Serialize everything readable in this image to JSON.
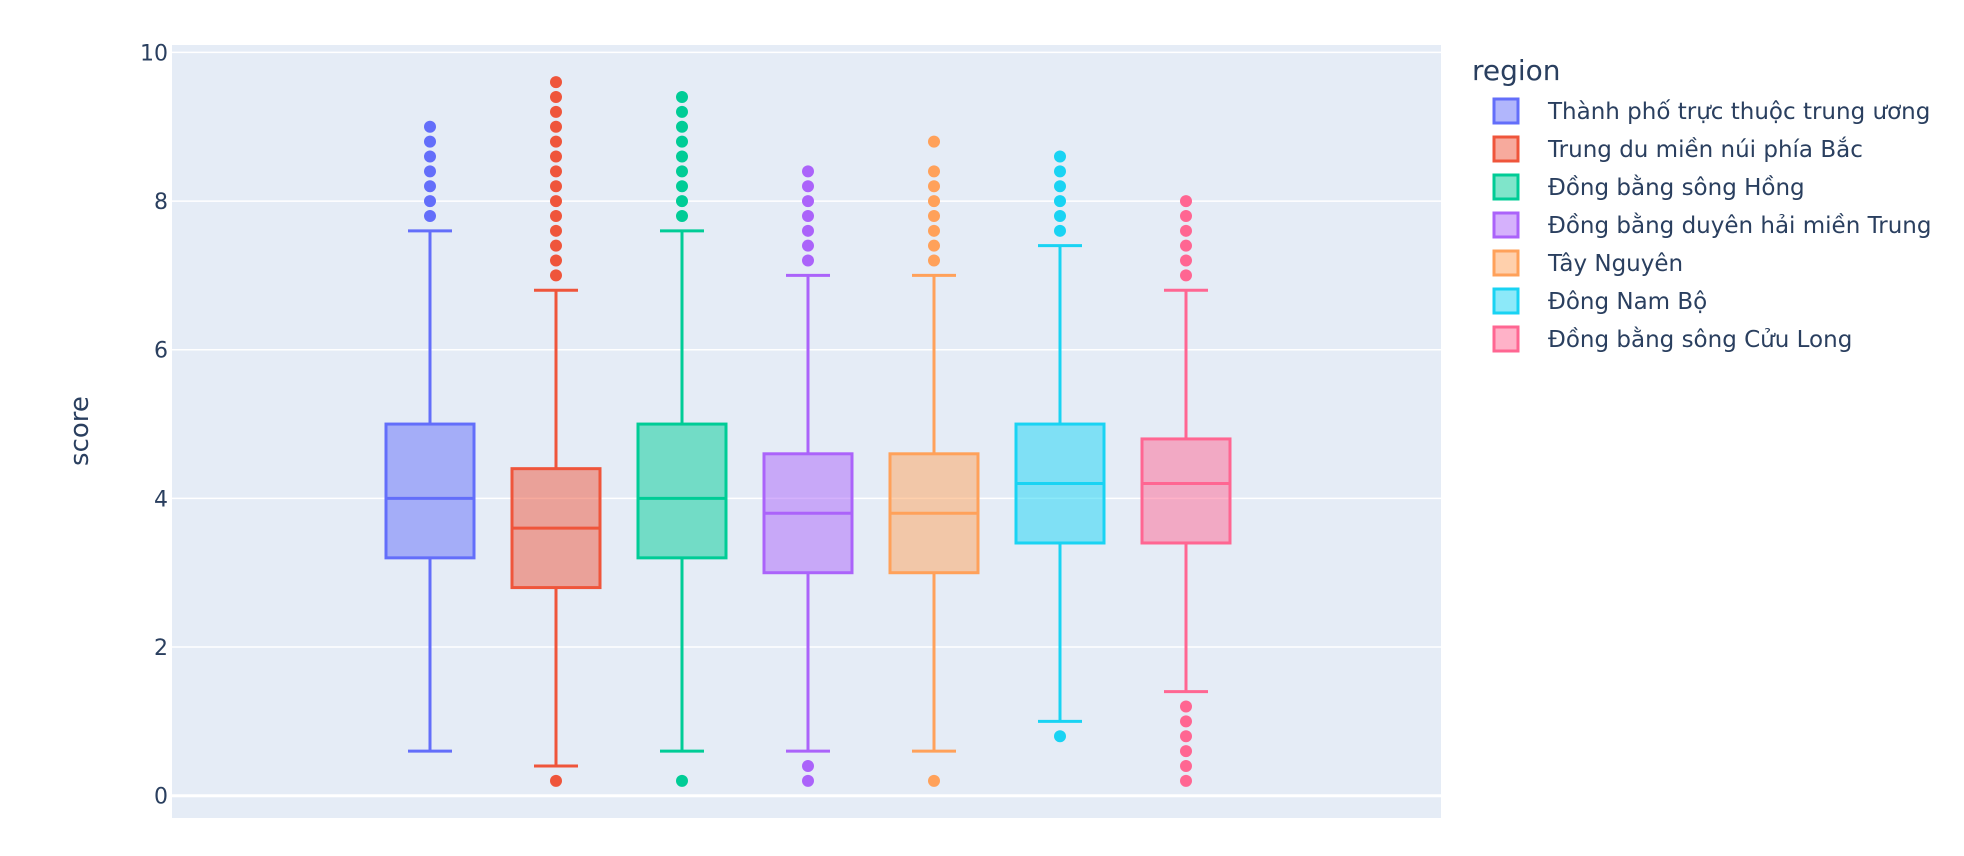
{
  "chart_data": {
    "type": "box",
    "ylabel": "score",
    "ylim": [
      -0.3,
      10.1
    ],
    "yticks": [
      0,
      2,
      4,
      6,
      8,
      10
    ],
    "grid": true,
    "legend": {
      "title": "region",
      "position": "right"
    },
    "series": [
      {
        "name": "Thành phố trực thuộc trung ương",
        "color": "#636efa",
        "q1": 3.2,
        "median": 4.0,
        "q3": 5.0,
        "lower_fence": 0.6,
        "upper_fence": 7.6,
        "outliers": [
          7.8,
          8.0,
          8.2,
          8.4,
          8.6,
          8.8,
          9.0
        ]
      },
      {
        "name": "Trung du miền núi phía Bắc",
        "color": "#EF553B",
        "q1": 2.8,
        "median": 3.6,
        "q3": 4.4,
        "lower_fence": 0.4,
        "upper_fence": 6.8,
        "outliers": [
          0.2,
          7.0,
          7.2,
          7.4,
          7.6,
          7.8,
          8.0,
          8.2,
          8.4,
          8.6,
          8.8,
          9.0,
          9.2,
          9.4,
          9.6
        ]
      },
      {
        "name": "Đồng bằng sông Hồng",
        "color": "#00cc96",
        "q1": 3.2,
        "median": 4.0,
        "q3": 5.0,
        "lower_fence": 0.6,
        "upper_fence": 7.6,
        "outliers": [
          0.2,
          7.8,
          8.0,
          8.2,
          8.4,
          8.6,
          8.8,
          9.0,
          9.2,
          9.4
        ]
      },
      {
        "name": "Đồng bằng duyên hải miền Trung",
        "color": "#ab63fa",
        "q1": 3.0,
        "median": 3.8,
        "q3": 4.6,
        "lower_fence": 0.6,
        "upper_fence": 7.0,
        "outliers": [
          0.2,
          0.4,
          7.2,
          7.4,
          7.6,
          7.8,
          8.0,
          8.2,
          8.4
        ]
      },
      {
        "name": "Tây Nguyên",
        "color": "#FFA15A",
        "q1": 3.0,
        "median": 3.8,
        "q3": 4.6,
        "lower_fence": 0.6,
        "upper_fence": 7.0,
        "outliers": [
          0.2,
          7.2,
          7.4,
          7.6,
          7.8,
          8.0,
          8.2,
          8.4,
          8.8
        ]
      },
      {
        "name": "Đông Nam Bộ",
        "color": "#19d3f3",
        "q1": 3.4,
        "median": 4.2,
        "q3": 5.0,
        "lower_fence": 1.0,
        "upper_fence": 7.4,
        "outliers": [
          0.8,
          7.6,
          7.8,
          8.0,
          8.2,
          8.4,
          8.6
        ]
      },
      {
        "name": "Đồng bằng sông Cửu Long",
        "color": "#FF6692",
        "q1": 3.4,
        "median": 4.2,
        "q3": 4.8,
        "lower_fence": 1.4,
        "upper_fence": 6.8,
        "outliers": [
          0.2,
          0.4,
          0.6,
          0.8,
          1.0,
          1.2,
          7.0,
          7.2,
          7.4,
          7.6,
          7.8,
          8.0
        ]
      }
    ]
  }
}
